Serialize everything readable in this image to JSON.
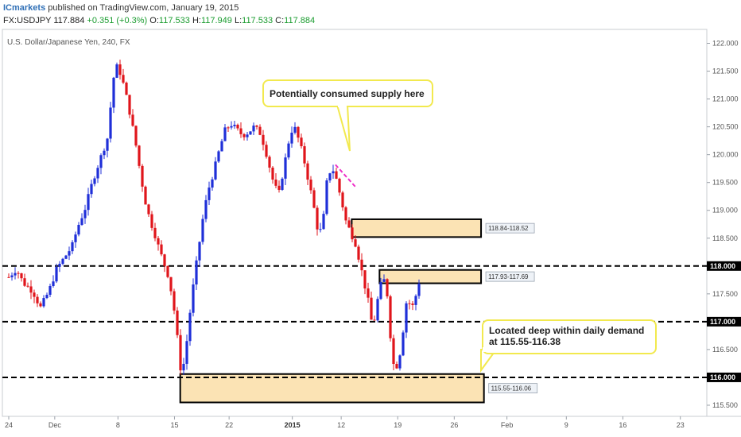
{
  "header": {
    "brand": "ICmarkets",
    "published": " published on TradingView.com, January 19, 2015",
    "symbol": "FX:USDJPY",
    "last": "117.884",
    "change": "+0.351 (+0.3%)",
    "o_label": "O:",
    "o_val": "117.533",
    "h_label": "H:",
    "h_val": "117.949",
    "l_label": "L:",
    "l_val": "117.533",
    "c_label": "C:",
    "c_val": "117.884"
  },
  "colors": {
    "bull": "#1f2fd8",
    "bear": "#e0151b",
    "zone_fill": "#fbe3b4",
    "callout_border": "#f2e94e",
    "dash_line": "#000000",
    "pink_trend": "#ee2fc8",
    "badge": "#000000"
  },
  "chart_data": {
    "type": "candlestick",
    "title": "U.S. Dollar/Japanese Yen, 240, FX",
    "ylim": [
      115.3,
      122.25
    ],
    "y_ticks": [
      "122.000",
      "121.500",
      "121.000",
      "120.500",
      "120.000",
      "119.500",
      "119.000",
      "118.500",
      "117.500",
      "116.500",
      "115.500"
    ],
    "x_ticks": [
      {
        "label": "24",
        "x": 0
      },
      {
        "label": "Dec",
        "x": 0.48
      },
      {
        "label": "8",
        "x": 1.14
      },
      {
        "label": "15",
        "x": 1.73
      },
      {
        "label": "22",
        "x": 2.3
      },
      {
        "label": "2015",
        "x": 2.96
      },
      {
        "label": "12",
        "x": 3.47
      },
      {
        "label": "19",
        "x": 4.06
      },
      {
        "label": "26",
        "x": 4.65
      },
      {
        "label": "Feb",
        "x": 5.2
      },
      {
        "label": "9",
        "x": 5.82
      },
      {
        "label": "16",
        "x": 6.41
      },
      {
        "label": "23",
        "x": 7.01
      }
    ],
    "x_unit_note": "",
    "levels": [
      {
        "value": 118.0,
        "label": "118.000"
      },
      {
        "value": 117.0,
        "label": "117.000"
      },
      {
        "value": 116.0,
        "label": "116.000"
      }
    ],
    "zones": [
      {
        "top": 118.84,
        "bottom": 118.52,
        "label": "118.84-118.52",
        "x0": 3.58,
        "x1": 4.93
      },
      {
        "top": 117.93,
        "bottom": 117.69,
        "label": "117.93-117.69",
        "x0": 3.87,
        "x1": 4.93
      },
      {
        "top": 116.06,
        "bottom": 115.55,
        "label": "115.55-116.06",
        "x0": 1.79,
        "x1": 4.96
      }
    ],
    "callouts": [
      {
        "text": [
          "Potentially consumed supply here"
        ]
      },
      {
        "text": [
          "Located deep within daily demand",
          "at 115.55-116.38"
        ]
      }
    ],
    "price_path": [
      [
        0.0,
        117.8
      ],
      [
        0.08,
        117.95
      ],
      [
        0.15,
        117.7
      ],
      [
        0.25,
        117.55
      ],
      [
        0.33,
        117.25
      ],
      [
        0.42,
        117.55
      ],
      [
        0.5,
        117.95
      ],
      [
        0.58,
        118.15
      ],
      [
        0.66,
        118.35
      ],
      [
        0.72,
        118.7
      ],
      [
        0.8,
        119.05
      ],
      [
        0.88,
        119.55
      ],
      [
        0.96,
        119.95
      ],
      [
        1.04,
        120.35
      ],
      [
        1.08,
        121.25
      ],
      [
        1.12,
        121.6
      ],
      [
        1.17,
        121.45
      ],
      [
        1.22,
        121.1
      ],
      [
        1.27,
        120.7
      ],
      [
        1.32,
        120.25
      ],
      [
        1.37,
        119.7
      ],
      [
        1.42,
        119.2
      ],
      [
        1.47,
        118.85
      ],
      [
        1.52,
        118.6
      ],
      [
        1.57,
        118.3
      ],
      [
        1.62,
        118.05
      ],
      [
        1.67,
        117.8
      ],
      [
        1.72,
        117.3
      ],
      [
        1.76,
        116.7
      ],
      [
        1.8,
        116.05
      ],
      [
        1.84,
        116.35
      ],
      [
        1.88,
        117.0
      ],
      [
        1.93,
        117.7
      ],
      [
        1.98,
        118.3
      ],
      [
        2.03,
        118.9
      ],
      [
        2.08,
        119.35
      ],
      [
        2.14,
        119.7
      ],
      [
        2.2,
        120.1
      ],
      [
        2.26,
        120.45
      ],
      [
        2.32,
        120.55
      ],
      [
        2.38,
        120.45
      ],
      [
        2.44,
        120.35
      ],
      [
        2.5,
        120.4
      ],
      [
        2.56,
        120.5
      ],
      [
        2.62,
        120.4
      ],
      [
        2.67,
        120.15
      ],
      [
        2.72,
        119.8
      ],
      [
        2.77,
        119.45
      ],
      [
        2.82,
        119.3
      ],
      [
        2.88,
        119.85
      ],
      [
        2.94,
        120.4
      ],
      [
        2.98,
        120.5
      ],
      [
        3.02,
        120.3
      ],
      [
        3.07,
        120.0
      ],
      [
        3.12,
        119.6
      ],
      [
        3.17,
        119.2
      ],
      [
        3.22,
        118.7
      ],
      [
        3.27,
        118.6
      ],
      [
        3.32,
        119.5
      ],
      [
        3.37,
        119.8
      ],
      [
        3.42,
        119.55
      ],
      [
        3.47,
        119.2
      ],
      [
        3.52,
        118.8
      ],
      [
        3.57,
        118.6
      ],
      [
        3.62,
        118.4
      ],
      [
        3.66,
        118.1
      ],
      [
        3.71,
        117.7
      ],
      [
        3.76,
        117.3
      ],
      [
        3.8,
        116.85
      ],
      [
        3.84,
        117.3
      ],
      [
        3.88,
        117.65
      ],
      [
        3.92,
        117.75
      ],
      [
        3.96,
        117.4
      ],
      [
        4.0,
        116.3
      ],
      [
        4.04,
        116.15
      ],
      [
        4.08,
        116.4
      ],
      [
        4.12,
        116.9
      ],
      [
        4.16,
        117.5
      ],
      [
        4.2,
        117.2
      ],
      [
        4.24,
        117.4
      ],
      [
        4.28,
        117.7
      ],
      [
        4.31,
        117.88
      ]
    ],
    "supply_trendline": {
      "x0": 3.41,
      "y0": 119.82,
      "x1": 3.62,
      "y1": 119.42
    }
  }
}
